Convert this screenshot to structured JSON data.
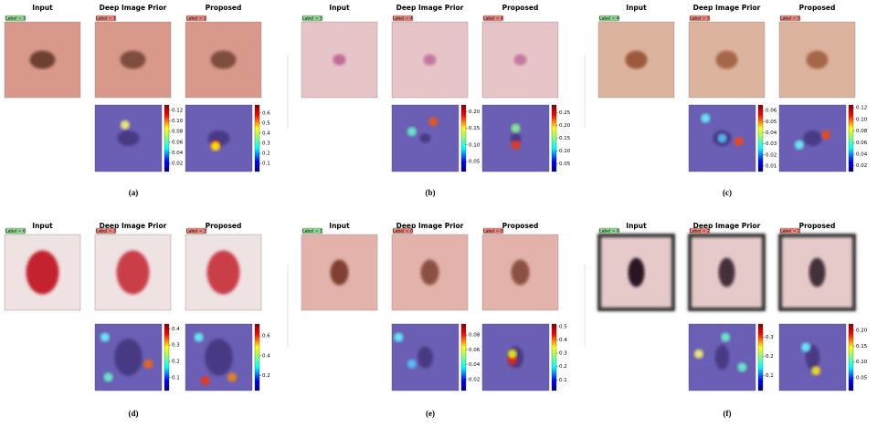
{
  "panels": [
    {
      "caption": "(a)",
      "columns": [
        {
          "title": "Input",
          "label": "Label = 3"
        },
        {
          "title": "Deep Image Prior",
          "label": "Label = 1",
          "colorbar": {
            "lim": [
              0.005,
              0.13
            ],
            "ticks": [
              0.02,
              0.04,
              0.06,
              0.08,
              {
                "value": 0.1,
                "label": "0.10"
              },
              0.12
            ]
          }
        },
        {
          "title": "Proposed",
          "label": "Label = 1",
          "colorbar": {
            "lim": [
              0.02,
              0.68
            ],
            "ticks": [
              0.1,
              0.2,
              0.3,
              0.4,
              0.5,
              0.6
            ]
          }
        }
      ]
    },
    {
      "caption": "(b)",
      "columns": [
        {
          "title": "Input",
          "label": "Label = 5"
        },
        {
          "title": "Deep Image Prior",
          "label": "Label = 4",
          "colorbar": {
            "lim": [
              0.02,
              0.22
            ],
            "ticks": [
              0.05,
              {
                "value": 0.1,
                "label": "0.10"
              },
              0.15,
              {
                "value": 0.2,
                "label": "0.20"
              }
            ]
          }
        },
        {
          "title": "Proposed",
          "label": "Label = 4",
          "colorbar": {
            "lim": [
              0.02,
              0.28
            ],
            "ticks": [
              0.05,
              {
                "value": 0.1,
                "label": "0.10"
              },
              0.15,
              {
                "value": 0.2,
                "label": "0.20"
              },
              0.25
            ]
          }
        }
      ]
    },
    {
      "caption": "(c)",
      "columns": [
        {
          "title": "Input",
          "label": "Label = 4"
        },
        {
          "title": "Deep Image Prior",
          "label": "Label = 5",
          "colorbar": {
            "lim": [
              0.005,
              0.065
            ],
            "ticks": [
              0.01,
              0.02,
              0.03,
              0.04,
              0.05,
              0.06
            ]
          }
        },
        {
          "title": "Proposed",
          "label": "Label = 5",
          "colorbar": {
            "lim": [
              0.01,
              0.125
            ],
            "ticks": [
              0.02,
              0.04,
              0.06,
              0.08,
              {
                "value": 0.1,
                "label": "0.10"
              },
              0.12
            ]
          }
        }
      ]
    },
    {
      "caption": "(d)",
      "columns": [
        {
          "title": "Input",
          "label": "Label = 6"
        },
        {
          "title": "Deep Image Prior",
          "label": "Label = 3",
          "colorbar": {
            "lim": [
              0.02,
              0.43
            ],
            "ticks": [
              0.1,
              0.2,
              0.3,
              0.4
            ]
          }
        },
        {
          "title": "Proposed",
          "label": "Label = 3",
          "colorbar": {
            "lim": [
              0.05,
              0.72
            ],
            "ticks": [
              0.2,
              0.4,
              0.6
            ]
          }
        }
      ]
    },
    {
      "caption": "(e)",
      "columns": [
        {
          "title": "Input",
          "label": "Label = 1"
        },
        {
          "title": "Deep Image Prior",
          "label": "Label = 0",
          "colorbar": {
            "lim": [
              0.005,
              0.095
            ],
            "ticks": [
              0.02,
              0.04,
              0.06,
              0.08
            ]
          }
        },
        {
          "title": "Proposed",
          "label": "Label = 0",
          "colorbar": {
            "lim": [
              0.02,
              0.52
            ],
            "ticks": [
              0.1,
              0.2,
              0.3,
              0.4,
              0.5
            ]
          }
        }
      ]
    },
    {
      "caption": "(f)",
      "columns": [
        {
          "title": "Input",
          "label": "Label = 0"
        },
        {
          "title": "Deep Image Prior",
          "label": "Label = 2",
          "colorbar": {
            "lim": [
              0.02,
              0.37
            ],
            "ticks": [
              0.1,
              0.2,
              0.3
            ]
          }
        },
        {
          "title": "Proposed",
          "label": "Label = 2",
          "colorbar": {
            "lim": [
              0.01,
              0.22
            ],
            "ticks": [
              0.05,
              {
                "value": 0.1,
                "label": "0.10"
              },
              0.15,
              {
                "value": 0.2,
                "label": "0.20"
              }
            ]
          }
        }
      ]
    }
  ]
}
